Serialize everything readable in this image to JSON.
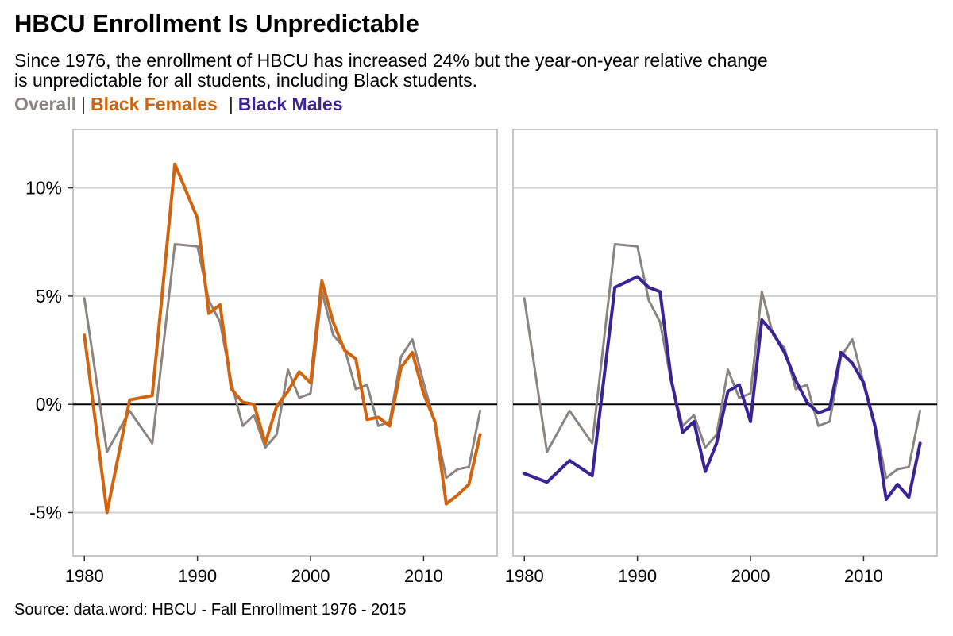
{
  "title": "HBCU Enrollment Is Unpredictable",
  "subtitle": "Since 1976, the enrollment of HBCU has increased 24% but the year-on-year relative change\nis unpredictable for all students, including Black students.",
  "legend": {
    "overall": "Overall",
    "females": "Black Females",
    "males": "Black Males",
    "separator": "|"
  },
  "colors": {
    "overall": "#8c8480",
    "females": "#d2640e",
    "males": "#3a2395",
    "zero_line": "#000000",
    "grid": "#d0d0d0",
    "frame": "#c8c8c8"
  },
  "source": "Source: data.word: HBCU - Fall Enrollment 1976 - 2015",
  "chart_data": [
    {
      "type": "line",
      "panel": "left",
      "xlim": [
        1979,
        2016.5
      ],
      "ylim": [
        -7,
        12.7
      ],
      "x_ticks": [
        1980,
        1990,
        2000,
        2010
      ],
      "x_tick_labels": [
        "1980",
        "1990",
        "2000",
        "2010"
      ],
      "y_ticks": [
        -5,
        0,
        5,
        10
      ],
      "y_tick_labels": [
        "-5%",
        "0%",
        "5%",
        "10%"
      ],
      "grid": true,
      "series": [
        {
          "name": "Overall",
          "x": [
            1980,
            1982,
            1984,
            1986,
            1988,
            1990,
            1991,
            1992,
            1993,
            1994,
            1995,
            1996,
            1997,
            1998,
            1999,
            2000,
            2001,
            2002,
            2003,
            2004,
            2005,
            2006,
            2007,
            2008,
            2009,
            2010,
            2011,
            2012,
            2013,
            2014,
            2015
          ],
          "y": [
            4.9,
            -2.2,
            -0.3,
            -1.8,
            7.4,
            7.3,
            4.8,
            3.8,
            1.0,
            -1.0,
            -0.5,
            -2.0,
            -1.4,
            1.6,
            0.3,
            0.5,
            5.2,
            3.2,
            2.6,
            0.7,
            0.9,
            -1.0,
            -0.8,
            2.2,
            3.0,
            1.0,
            -0.9,
            -3.4,
            -3.0,
            -2.9,
            -0.3
          ]
        },
        {
          "name": "Black Females",
          "x": [
            1980,
            1982,
            1984,
            1986,
            1988,
            1990,
            1991,
            1992,
            1993,
            1994,
            1995,
            1996,
            1997,
            1998,
            1999,
            2000,
            2001,
            2002,
            2003,
            2004,
            2005,
            2006,
            2007,
            2008,
            2009,
            2010,
            2011,
            2012,
            2013,
            2014,
            2015
          ],
          "y": [
            3.2,
            -5.0,
            0.2,
            0.4,
            11.1,
            8.6,
            4.2,
            4.6,
            0.7,
            0.1,
            0.0,
            -1.8,
            -0.1,
            0.6,
            1.5,
            1.0,
            5.7,
            3.8,
            2.5,
            2.1,
            -0.7,
            -0.6,
            -1.0,
            1.7,
            2.4,
            0.5,
            -0.8,
            -4.6,
            -4.2,
            -3.7,
            -1.4
          ]
        }
      ]
    },
    {
      "type": "line",
      "panel": "right",
      "xlim": [
        1979,
        2016.5
      ],
      "ylim": [
        -7,
        12.7
      ],
      "x_ticks": [
        1980,
        1990,
        2000,
        2010
      ],
      "x_tick_labels": [
        "1980",
        "1990",
        "2000",
        "2010"
      ],
      "y_ticks": [
        -5,
        0,
        5,
        10
      ],
      "grid": true,
      "series": [
        {
          "name": "Overall",
          "x": [
            1980,
            1982,
            1984,
            1986,
            1988,
            1990,
            1991,
            1992,
            1993,
            1994,
            1995,
            1996,
            1997,
            1998,
            1999,
            2000,
            2001,
            2002,
            2003,
            2004,
            2005,
            2006,
            2007,
            2008,
            2009,
            2010,
            2011,
            2012,
            2013,
            2014,
            2015
          ],
          "y": [
            4.9,
            -2.2,
            -0.3,
            -1.8,
            7.4,
            7.3,
            4.8,
            3.8,
            1.0,
            -1.0,
            -0.5,
            -2.0,
            -1.4,
            1.6,
            0.3,
            0.5,
            5.2,
            3.2,
            2.6,
            0.7,
            0.9,
            -1.0,
            -0.8,
            2.2,
            3.0,
            1.0,
            -0.9,
            -3.4,
            -3.0,
            -2.9,
            -0.3
          ]
        },
        {
          "name": "Black Males",
          "x": [
            1980,
            1982,
            1984,
            1986,
            1988,
            1990,
            1991,
            1992,
            1993,
            1994,
            1995,
            1996,
            1997,
            1998,
            1999,
            2000,
            2001,
            2002,
            2003,
            2004,
            2005,
            2006,
            2007,
            2008,
            2009,
            2010,
            2011,
            2012,
            2013,
            2014,
            2015
          ],
          "y": [
            -3.2,
            -3.6,
            -2.6,
            -3.3,
            5.4,
            5.9,
            5.4,
            5.2,
            1.1,
            -1.3,
            -0.8,
            -3.1,
            -1.8,
            0.6,
            0.9,
            -0.8,
            3.9,
            3.3,
            2.4,
            1.1,
            0.1,
            -0.4,
            -0.2,
            2.4,
            1.9,
            1.0,
            -1.0,
            -4.4,
            -3.7,
            -4.3,
            -1.8
          ]
        }
      ]
    }
  ]
}
